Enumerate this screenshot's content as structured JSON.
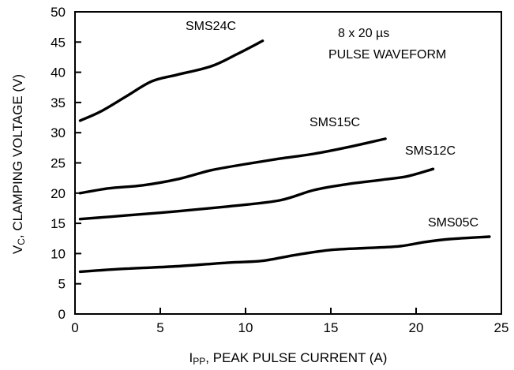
{
  "chart_data": {
    "type": "line",
    "title": "",
    "xlabel_main": "I",
    "xlabel_sub": "PP",
    "xlabel_rest": ", PEAK PULSE CURRENT (A)",
    "ylabel_main": "V",
    "ylabel_sub": "C",
    "ylabel_rest": ", CLAMPING VOLTAGE (V)",
    "xlim": [
      0,
      25
    ],
    "ylim": [
      0,
      50
    ],
    "x_ticks": [
      0,
      5,
      10,
      15,
      20,
      25
    ],
    "y_ticks": [
      0,
      5,
      10,
      15,
      20,
      25,
      30,
      35,
      40,
      45,
      50
    ],
    "grid": false,
    "annotation_line1": "8 x 20 µs",
    "annotation_line2": "PULSE WAVEFORM",
    "series": [
      {
        "name": "SMS24C",
        "points": [
          [
            0.3,
            32
          ],
          [
            1.5,
            33.5
          ],
          [
            3,
            36
          ],
          [
            4.5,
            38.5
          ],
          [
            6,
            39.6
          ],
          [
            8,
            41
          ],
          [
            9.5,
            43
          ],
          [
            11,
            45.2
          ]
        ]
      },
      {
        "name": "SMS15C",
        "points": [
          [
            0.3,
            20
          ],
          [
            2,
            20.8
          ],
          [
            4,
            21.3
          ],
          [
            6,
            22.3
          ],
          [
            8,
            23.8
          ],
          [
            10,
            24.8
          ],
          [
            12,
            25.7
          ],
          [
            14,
            26.5
          ],
          [
            16,
            27.6
          ],
          [
            18.2,
            29
          ]
        ]
      },
      {
        "name": "SMS12C",
        "points": [
          [
            0.3,
            15.7
          ],
          [
            3,
            16.3
          ],
          [
            6,
            17
          ],
          [
            9,
            17.8
          ],
          [
            12,
            18.8
          ],
          [
            14,
            20.5
          ],
          [
            16,
            21.5
          ],
          [
            18,
            22.2
          ],
          [
            19.5,
            22.8
          ],
          [
            21,
            24
          ]
        ]
      },
      {
        "name": "SMS05C",
        "points": [
          [
            0.3,
            7
          ],
          [
            3,
            7.5
          ],
          [
            6,
            7.9
          ],
          [
            9,
            8.5
          ],
          [
            11,
            8.8
          ],
          [
            13,
            9.8
          ],
          [
            15,
            10.6
          ],
          [
            17,
            10.9
          ],
          [
            19,
            11.2
          ],
          [
            20.5,
            11.9
          ],
          [
            22,
            12.4
          ],
          [
            24.3,
            12.8
          ]
        ]
      }
    ]
  }
}
